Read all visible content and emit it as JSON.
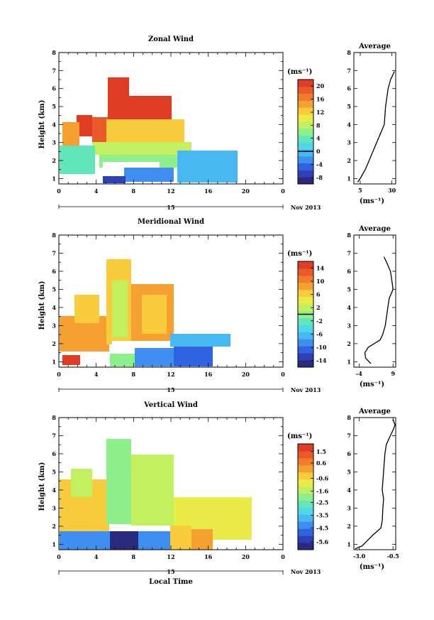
{
  "colors": {
    "wind_scale": [
      "#2a2a7c",
      "#2f3fb4",
      "#2f63e0",
      "#3f8ff0",
      "#47b8f2",
      "#4fd8e8",
      "#63e6b8",
      "#8ef08a",
      "#c2f060",
      "#eaea48",
      "#f8cc3c",
      "#f6a032",
      "#f07c2c",
      "#ea5a28",
      "#e03c24"
    ],
    "average_line": "#000000",
    "zero_line": "#000000"
  },
  "footer_label": "Local Time",
  "chart_data": [
    {
      "type": "heatmap",
      "id": "zonal",
      "title": "Zonal Wind",
      "ylabel": "Height (km)",
      "xticks": [
        "0",
        "4",
        "8",
        "12",
        "16",
        "20",
        "0"
      ],
      "date_label": "15",
      "month_label": "Nov 2013",
      "ylim": [
        0.7,
        8
      ],
      "yticks": [
        "1",
        "2",
        "3",
        "4",
        "5",
        "6",
        "7",
        "8"
      ],
      "xlim_hours": [
        0,
        24
      ],
      "unit": "(ms⁻¹)",
      "colorbar_ticks": [
        "-8",
        "-4",
        "0",
        "4",
        "8",
        "12",
        "16",
        "20"
      ],
      "colorbar_range": [
        -10,
        22
      ],
      "zero_value": 0,
      "avg_title": "Average",
      "avg_xticks": [
        "5",
        "30"
      ],
      "avg_xlim": [
        0,
        33
      ],
      "avg_unit": "(ms⁻¹)",
      "avg_profile": {
        "height": [
          0.8,
          1.0,
          1.5,
          2.0,
          2.5,
          3.0,
          3.5,
          4.0,
          4.5,
          5.0,
          5.5,
          6.0,
          6.5,
          6.8,
          6.95
        ],
        "value": [
          3,
          5,
          9,
          12,
          15,
          18,
          21,
          24,
          24.5,
          25,
          26,
          27,
          29,
          31,
          32
        ]
      }
    },
    {
      "type": "heatmap",
      "id": "meridional",
      "title": "Meridional Wind",
      "ylabel": "Height (km)",
      "xticks": [
        "0",
        "4",
        "8",
        "12",
        "16",
        "20",
        "0"
      ],
      "date_label": "15",
      "month_label": "Nov 2013",
      "ylim": [
        0.7,
        8
      ],
      "yticks": [
        "1",
        "2",
        "3",
        "4",
        "5",
        "6",
        "7",
        "8"
      ],
      "xlim_hours": [
        0,
        24
      ],
      "unit": "(ms⁻¹)",
      "colorbar_ticks": [
        "-14",
        "-10",
        "-6",
        "-2",
        "2",
        "6",
        "10",
        "14"
      ],
      "colorbar_range": [
        -16,
        16
      ],
      "zero_value": 0,
      "avg_title": "Average",
      "avg_xticks": [
        "-4",
        "9"
      ],
      "avg_xlim": [
        -6,
        10
      ],
      "avg_unit": "(ms⁻¹)",
      "avg_profile": {
        "height": [
          0.9,
          1.2,
          1.5,
          1.8,
          2.2,
          2.5,
          3.0,
          3.5,
          4.0,
          4.5,
          5.0,
          5.5,
          6.0,
          6.5,
          6.8
        ],
        "value": [
          0.5,
          -1.5,
          -1.8,
          -0.5,
          4,
          5,
          6,
          6.5,
          7,
          7.5,
          9,
          8.5,
          8,
          6.5,
          5.5
        ]
      }
    },
    {
      "type": "heatmap",
      "id": "vertical",
      "title": "Vertical Wind",
      "ylabel": "Height (km)",
      "xticks": [
        "0",
        "4",
        "8",
        "12",
        "16",
        "20",
        "0"
      ],
      "date_label": "15",
      "month_label": "Nov 2013",
      "ylim": [
        0.7,
        8
      ],
      "yticks": [
        "1",
        "2",
        "3",
        "4",
        "5",
        "6",
        "7",
        "8"
      ],
      "xlim_hours": [
        0,
        24
      ],
      "unit": "(ms⁻¹)",
      "colorbar_ticks": [
        "-5.6",
        "-4.5",
        "-3.5",
        "-2.5",
        "-1.6",
        "-0.6",
        "0.6",
        "1.5"
      ],
      "colorbar_range": [
        -6.2,
        2.1
      ],
      "zero_value": null,
      "avg_title": "Average",
      "avg_xticks": [
        "-3.0",
        "-0.5"
      ],
      "avg_xlim": [
        -3.4,
        -0.3
      ],
      "avg_unit": "(ms⁻¹)",
      "avg_profile": {
        "height": [
          0.75,
          0.9,
          1.5,
          1.9,
          2.3,
          3.0,
          3.5,
          4.0,
          4.5,
          5.0,
          5.5,
          6.0,
          6.5,
          7.0,
          7.3,
          7.6,
          7.9
        ],
        "value": [
          -3.3,
          -2.8,
          -2.0,
          -1.4,
          -1.3,
          -1.25,
          -1.2,
          -1.3,
          -1.25,
          -1.2,
          -1.15,
          -1.1,
          -1.0,
          -0.7,
          -0.5,
          -0.35,
          -0.5
        ]
      }
    }
  ]
}
